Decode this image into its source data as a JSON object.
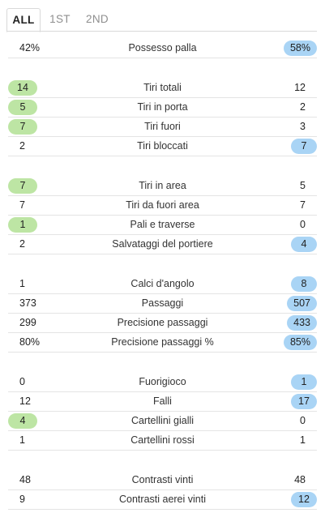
{
  "tabs": [
    {
      "label": "ALL",
      "active": true
    },
    {
      "label": "1ST",
      "active": false
    },
    {
      "label": "2ND",
      "active": false
    }
  ],
  "colors": {
    "home_highlight": "#bde5a4",
    "away_highlight": "#a9d4f5"
  },
  "stats": [
    {
      "label": "Possesso palla",
      "home": "42%",
      "away": "58%",
      "leader": "away"
    },
    {
      "label": "Tiri totali",
      "home": "14",
      "away": "12",
      "leader": "home"
    },
    {
      "label": "Tiri in porta",
      "home": "5",
      "away": "2",
      "leader": "home"
    },
    {
      "label": "Tiri fuori",
      "home": "7",
      "away": "3",
      "leader": "home"
    },
    {
      "label": "Tiri bloccati",
      "home": "2",
      "away": "7",
      "leader": "away"
    },
    {
      "label": "Tiri in area",
      "home": "7",
      "away": "5",
      "leader": "home"
    },
    {
      "label": "Tiri da fuori area",
      "home": "7",
      "away": "7",
      "leader": "none"
    },
    {
      "label": "Pali e traverse",
      "home": "1",
      "away": "0",
      "leader": "home"
    },
    {
      "label": "Salvataggi del portiere",
      "home": "2",
      "away": "4",
      "leader": "away"
    },
    {
      "label": "Calci d'angolo",
      "home": "1",
      "away": "8",
      "leader": "away"
    },
    {
      "label": "Passaggi",
      "home": "373",
      "away": "507",
      "leader": "away"
    },
    {
      "label": "Precisione passaggi",
      "home": "299",
      "away": "433",
      "leader": "away"
    },
    {
      "label": "Precisione passaggi %",
      "home": "80%",
      "away": "85%",
      "leader": "away"
    },
    {
      "label": "Fuorigioco",
      "home": "0",
      "away": "1",
      "leader": "away"
    },
    {
      "label": "Falli",
      "home": "12",
      "away": "17",
      "leader": "away"
    },
    {
      "label": "Cartellini gialli",
      "home": "4",
      "away": "0",
      "leader": "home"
    },
    {
      "label": "Cartellini rossi",
      "home": "1",
      "away": "1",
      "leader": "none"
    },
    {
      "label": "Contrasti vinti",
      "home": "48",
      "away": "48",
      "leader": "none"
    },
    {
      "label": "Contrasti aerei vinti",
      "home": "9",
      "away": "12",
      "leader": "away"
    }
  ]
}
